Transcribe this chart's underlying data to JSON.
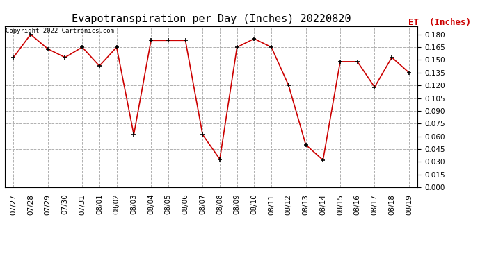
{
  "title": "Evapotranspiration per Day (Inches) 20220820",
  "legend_label": "ET  (Inches)",
  "copyright_text": "Copyright 2022 Cartronics.com",
  "dates": [
    "07/27",
    "07/28",
    "07/29",
    "07/30",
    "07/31",
    "08/01",
    "08/02",
    "08/03",
    "08/04",
    "08/05",
    "08/06",
    "08/07",
    "08/08",
    "08/09",
    "08/10",
    "08/11",
    "08/12",
    "08/13",
    "08/14",
    "08/15",
    "08/16",
    "08/17",
    "08/18",
    "08/19"
  ],
  "values": [
    0.153,
    0.18,
    0.163,
    0.153,
    0.165,
    0.143,
    0.165,
    0.062,
    0.173,
    0.173,
    0.173,
    0.062,
    0.033,
    0.165,
    0.175,
    0.165,
    0.12,
    0.05,
    0.032,
    0.148,
    0.148,
    0.118,
    0.153,
    0.135
  ],
  "line_color": "#cc0000",
  "marker_color": "#000000",
  "grid_color": "#b0b0b0",
  "background_color": "#ffffff",
  "ylim": [
    0.0,
    0.19
  ],
  "yticks": [
    0.0,
    0.015,
    0.03,
    0.045,
    0.06,
    0.075,
    0.09,
    0.105,
    0.12,
    0.135,
    0.15,
    0.165,
    0.18
  ],
  "title_fontsize": 11,
  "legend_fontsize": 9,
  "tick_fontsize": 7.5,
  "copyright_fontsize": 6.5
}
